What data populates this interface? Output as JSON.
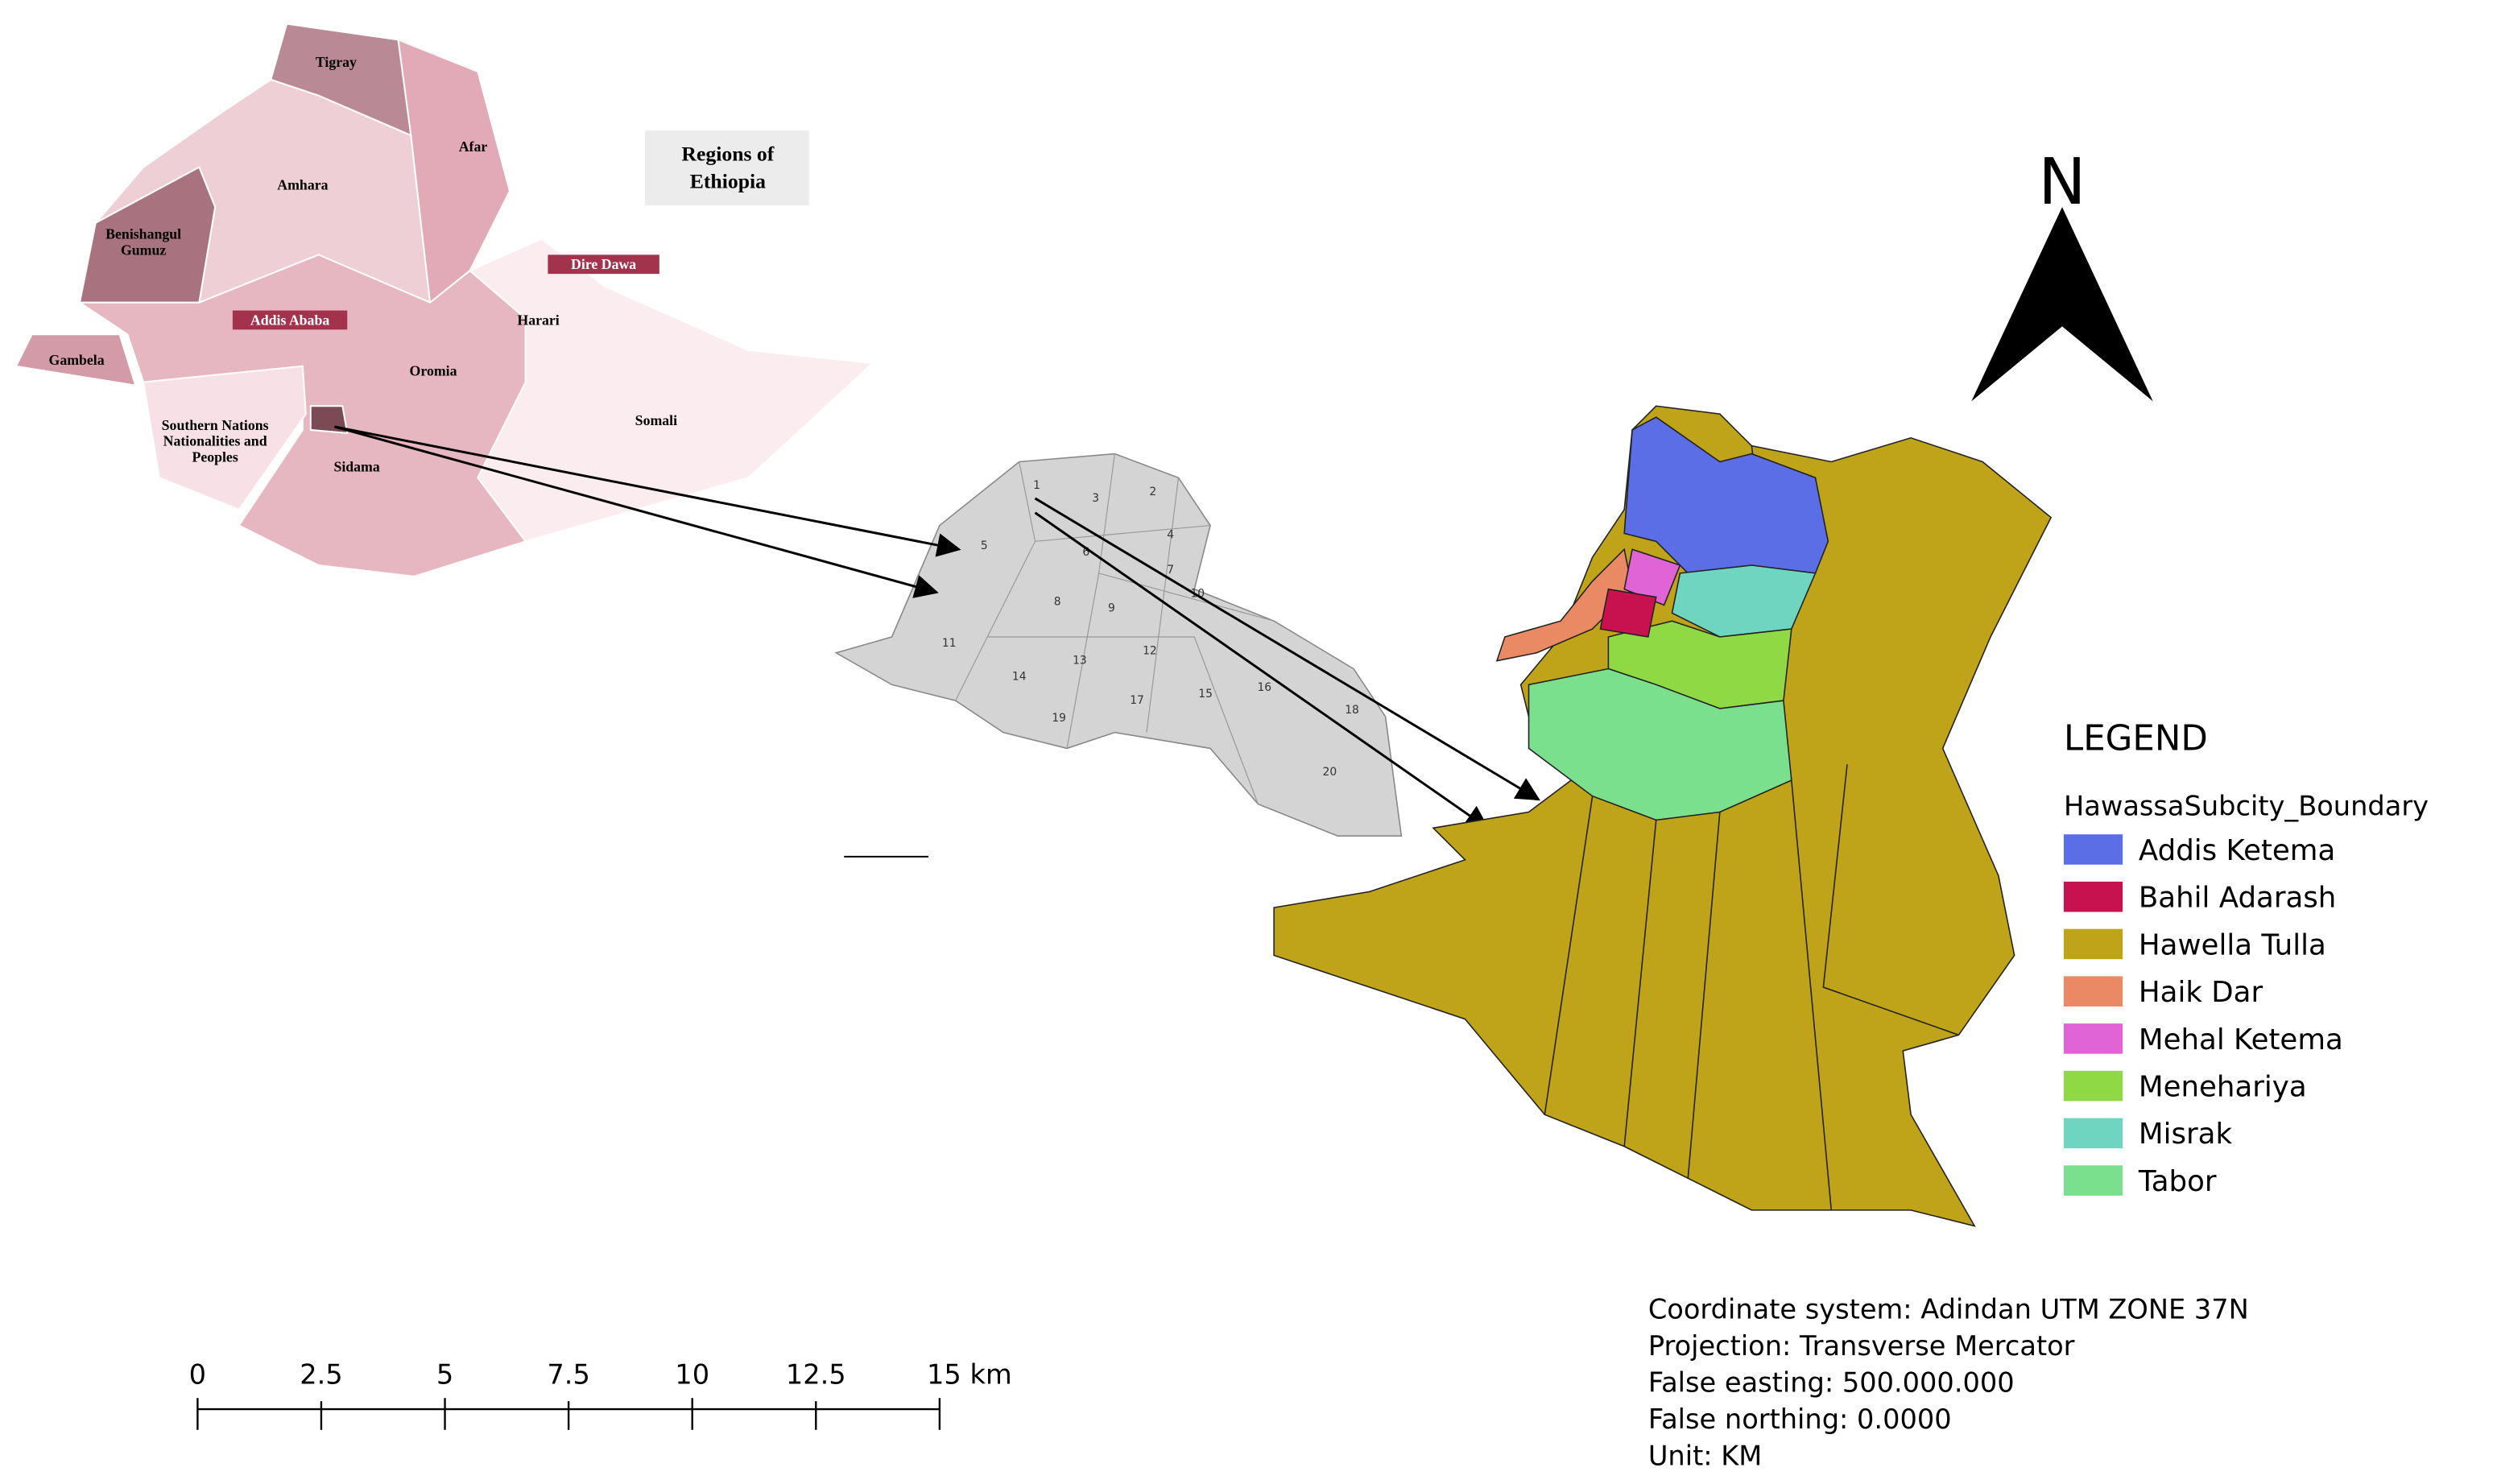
{
  "inset_map": {
    "title": [
      "Regions of",
      "Ethiopia"
    ],
    "regions": {
      "tigray": "Tigray",
      "afar": "Afar",
      "amhara": "Amhara",
      "benishangul": [
        "Benishangul",
        "Gumuz"
      ],
      "dire_dawa": "Dire Dawa",
      "harari": "Harari",
      "addis_ababa": "Addis Ababa",
      "gambela": "Gambela",
      "oromia": "Oromia",
      "somali": "Somali",
      "snnp": [
        "Southern Nations",
        "Nationalities and",
        "Peoples"
      ],
      "sidama": "Sidama"
    }
  },
  "zone_map": {
    "labels": [
      "1",
      "2",
      "3",
      "4",
      "5",
      "6",
      "7",
      "8",
      "9",
      "10",
      "11",
      "12",
      "13",
      "14",
      "15",
      "16",
      "17",
      "18",
      "19",
      "20"
    ]
  },
  "north_arrow": "N",
  "legend": {
    "title": "LEGEND",
    "layer": "HawassaSubcity_Boundary",
    "items": [
      {
        "label": "Addis Ketema",
        "color": "#5b6ee6"
      },
      {
        "label": "Bahil Adarash",
        "color": "#c8124f"
      },
      {
        "label": "Hawella Tulla",
        "color": "#bfa318"
      },
      {
        "label": "Haik Dar",
        "color": "#ea8a64"
      },
      {
        "label": "Mehal Ketema",
        "color": "#e064d6"
      },
      {
        "label": "Menehariya",
        "color": "#8fd944"
      },
      {
        "label": "Misrak",
        "color": "#6ed6c0"
      },
      {
        "label": "Tabor",
        "color": "#7be08e"
      }
    ]
  },
  "scale_bar": {
    "labels": [
      "0",
      "2.5",
      "5",
      "7.5",
      "10",
      "12.5",
      "15 km"
    ]
  },
  "map_info": [
    "Coordinate system: Adindan UTM ZONE 37N",
    "Projection: Transverse Mercator",
    "False easting: 500.000.000",
    "False northing: 0.0000",
    "Unit: KM"
  ]
}
